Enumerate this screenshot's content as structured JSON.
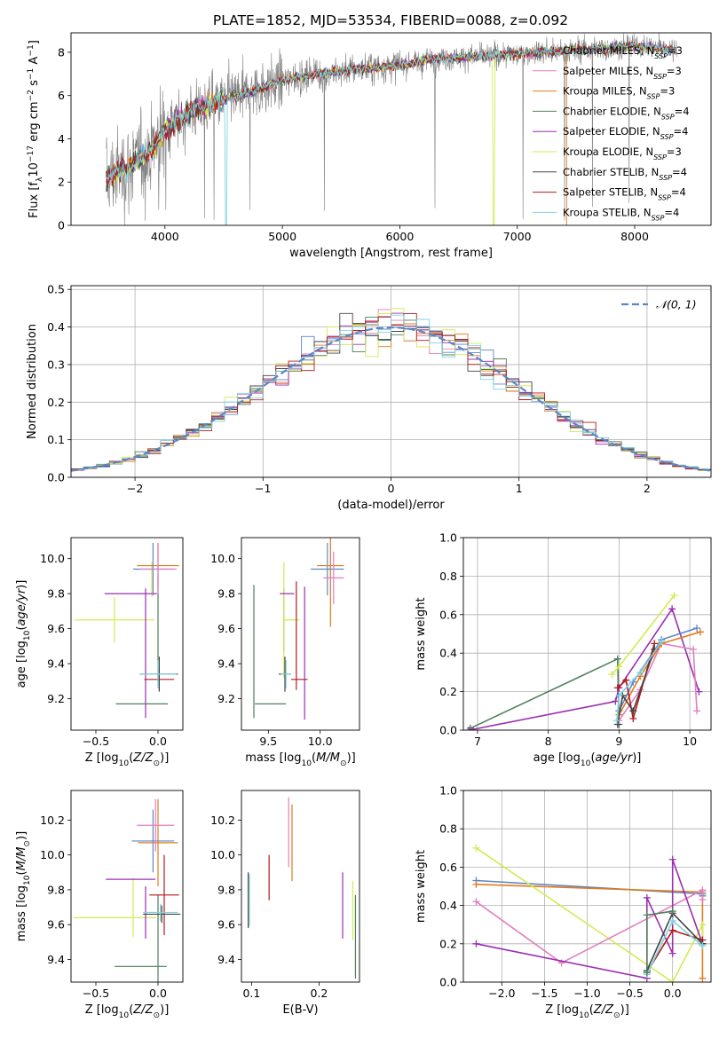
{
  "title": "PLATE=1852, MJD=53534, FIBERID=0088, z=0.092",
  "colors": {
    "chabrier_miles": "#5b87c8",
    "salpeter_miles": "#e37ebf",
    "kroupa_miles": "#e07b1f",
    "chabrier_elodie": "#4f7f5c",
    "salpeter_elodie": "#9a2fb0",
    "kroupa_elodie": "#d4ea52",
    "chabrier_stelib": "#444444",
    "salpeter_stelib": "#b31b1b",
    "kroupa_stelib": "#7fd3de",
    "data_gray": "#7f7f7f",
    "normal_curve": "#5b87c8",
    "grid": "#b0b0b0"
  },
  "chart_data": [
    {
      "id": "spectrum",
      "type": "line",
      "xlabel": "wavelength [Angstrom, rest frame]",
      "ylabel": "Flux [f_λ10^-17 erg cm^-2 s^-1 A^-1]",
      "xlim": [
        3200,
        8650
      ],
      "ylim": [
        0,
        8.9
      ],
      "xticks": [
        4000,
        5000,
        6000,
        7000,
        8000
      ],
      "yticks": [
        0,
        2,
        4,
        6,
        8
      ],
      "grid": false,
      "legend_position": "right",
      "legend": [
        {
          "label": "Chabrier MILES, N_SSP=3",
          "color_key": "chabrier_miles"
        },
        {
          "label": "Salpeter MILES, N_SSP=3",
          "color_key": "salpeter_miles"
        },
        {
          "label": "Kroupa MILES, N_SSP=3",
          "color_key": "kroupa_miles"
        },
        {
          "label": "Chabrier ELODIE, N_SSP=4",
          "color_key": "chabrier_elodie"
        },
        {
          "label": "Salpeter ELODIE, N_SSP=4",
          "color_key": "salpeter_elodie"
        },
        {
          "label": "Kroupa ELODIE, N_SSP=3",
          "color_key": "kroupa_elodie"
        },
        {
          "label": "Chabrier STELIB, N_SSP=4",
          "color_key": "chabrier_stelib"
        },
        {
          "label": "Salpeter STELIB, N_SSP=4",
          "color_key": "salpeter_stelib"
        },
        {
          "label": "Kroupa STELIB, N_SSP=4",
          "color_key": "kroupa_stelib"
        }
      ],
      "continuum": {
        "x": [
          3500,
          3700,
          3900,
          4000,
          4200,
          4500,
          4800,
          5000,
          5300,
          5600,
          6000,
          6300,
          6600,
          6900,
          7200,
          7500,
          7800,
          8000,
          8200,
          8350
        ],
        "y": [
          2.2,
          2.7,
          3.6,
          4.4,
          5.2,
          5.8,
          6.3,
          6.7,
          7.0,
          7.2,
          7.4,
          7.7,
          7.8,
          7.9,
          8.0,
          8.1,
          8.2,
          8.3,
          8.2,
          8.1
        ]
      },
      "model_cutoffs": {
        "kroupa_miles_end": 7420,
        "kroupa_elodie_drop": 6800,
        "kroupa_stelib_drop": 4520
      }
    },
    {
      "id": "residuals",
      "type": "histogram",
      "xlabel": "(data-model)/error",
      "ylabel": "Normed distribution",
      "xlim": [
        -2.5,
        2.5
      ],
      "ylim": [
        0,
        0.51
      ],
      "xticks": [
        -2,
        -1,
        0,
        1,
        2
      ],
      "yticks": [
        0.0,
        0.1,
        0.2,
        0.3,
        0.4,
        0.5
      ],
      "grid": true,
      "legend_position": "top-right",
      "legend": [
        {
          "label": "𝒩(0, 1)",
          "color_key": "normal_curve"
        }
      ],
      "bin_width": 0.1
    },
    {
      "id": "age_vs_Z",
      "type": "errorbar",
      "xlabel": "Z [log10(Z/Z☉)]",
      "ylabel": "age [log10(age/yr)]",
      "xlim": [
        -0.7,
        0.2
      ],
      "ylim": [
        9.02,
        10.12
      ],
      "xticks": [
        -0.5,
        0.0
      ],
      "yticks": [
        9.2,
        9.4,
        9.6,
        9.8,
        10.0
      ],
      "grid": false,
      "points": [
        {
          "model": "kroupa_elodie",
          "x": -0.35,
          "xerr": 0.32,
          "y": 9.65,
          "yerr": 0.13
        },
        {
          "model": "kroupa_elodie",
          "x": -0.05,
          "xerr": 0.0,
          "y": 9.88,
          "yerr": 0.1
        },
        {
          "model": "salpeter_elodie",
          "x": -0.22,
          "xerr": 0.21,
          "y": 9.8,
          "yerr": 0.0
        },
        {
          "model": "salpeter_elodie",
          "x": -0.1,
          "xerr": 0.0,
          "y": 9.46,
          "yerr": 0.37
        },
        {
          "model": "chabrier_elodie",
          "x": -0.13,
          "xerr": 0.21,
          "y": 9.17,
          "yerr": 0.0
        },
        {
          "model": "chabrier_elodie",
          "x": 0.0,
          "xerr": 0.0,
          "y": 9.6,
          "yerr": 0.3
        },
        {
          "model": "kroupa_miles",
          "x": 0.0,
          "xerr": 0.17,
          "y": 9.96,
          "yerr": 0.13
        },
        {
          "model": "chabrier_miles",
          "x": -0.04,
          "xerr": 0.16,
          "y": 9.94,
          "yerr": 0.15
        },
        {
          "model": "salpeter_miles",
          "x": 0.0,
          "xerr": 0.15,
          "y": 9.94,
          "yerr": 0.14
        },
        {
          "model": "salpeter_stelib",
          "x": 0.01,
          "xerr": 0.12,
          "y": 9.31,
          "yerr": 0.06
        },
        {
          "model": "chabrier_stelib",
          "x": 0.01,
          "xerr": 0.15,
          "y": 9.34,
          "yerr": 0.1
        },
        {
          "model": "kroupa_stelib",
          "x": 0.0,
          "xerr": 0.15,
          "y": 9.34,
          "yerr": 0.08
        }
      ]
    },
    {
      "id": "age_vs_mass",
      "type": "errorbar",
      "xlabel": "mass [log10(M/M☉)]",
      "ylabel": "",
      "xlim": [
        9.24,
        10.38
      ],
      "ylim": [
        9.02,
        10.12
      ],
      "xticks": [
        9.5,
        10.0
      ],
      "yticks": [
        9.2,
        9.4,
        9.6,
        9.8,
        10.0
      ],
      "grid": false,
      "points": [
        {
          "model": "chabrier_elodie",
          "x": 9.36,
          "xerr": 0.0,
          "y": 9.47,
          "yerr": 0.38
        },
        {
          "model": "chabrier_elodie",
          "x": 9.52,
          "xerr": 0.15,
          "y": 9.17,
          "yerr": 0.0
        },
        {
          "model": "chabrier_elodie",
          "x": 9.65,
          "xerr": 0.0,
          "y": 9.65,
          "yerr": 0.18
        },
        {
          "model": "kroupa_elodie",
          "x": 9.65,
          "xerr": 0.0,
          "y": 9.65,
          "yerr": 0.33
        },
        {
          "model": "kroupa_elodie",
          "x": 9.72,
          "xerr": 0.08,
          "y": 9.65,
          "yerr": 0.0
        },
        {
          "model": "salpeter_elodie",
          "x": 9.68,
          "xerr": 0.07,
          "y": 9.8,
          "yerr": 0.0
        },
        {
          "model": "salpeter_elodie",
          "x": 9.85,
          "xerr": 0.0,
          "y": 9.46,
          "yerr": 0.38
        },
        {
          "model": "salpeter_stelib",
          "x": 9.8,
          "xerr": 0.08,
          "y": 9.31,
          "yerr": 0.0
        },
        {
          "model": "salpeter_stelib",
          "x": 9.77,
          "xerr": 0.0,
          "y": 9.56,
          "yerr": 0.31
        },
        {
          "model": "chabrier_stelib",
          "x": 9.66,
          "xerr": 0.06,
          "y": 9.34,
          "yerr": 0.1
        },
        {
          "model": "kroupa_stelib",
          "x": 9.67,
          "xerr": 0.05,
          "y": 9.34,
          "yerr": 0.08
        },
        {
          "model": "chabrier_miles",
          "x": 10.07,
          "xerr": 0.16,
          "y": 9.94,
          "yerr": 0.15
        },
        {
          "model": "kroupa_miles",
          "x": 10.1,
          "xerr": 0.13,
          "y": 9.96,
          "yerr": 0.35
        },
        {
          "model": "salpeter_miles",
          "x": 10.13,
          "xerr": 0.1,
          "y": 9.89,
          "yerr": 0.15
        }
      ]
    },
    {
      "id": "weight_vs_age",
      "type": "line",
      "xlabel": "age [log10(age/yr)]",
      "ylabel": "mass weight",
      "xlim": [
        6.8,
        10.3
      ],
      "ylim": [
        0,
        1.0
      ],
      "xticks": [
        7,
        8,
        9,
        10
      ],
      "yticks": [
        0.0,
        0.2,
        0.4,
        0.6,
        0.8,
        1.0
      ],
      "grid": true,
      "series": [
        {
          "model": "chabrier_elodie",
          "x": [
            6.9,
            8.98,
            9.0
          ],
          "y": [
            0.01,
            0.37,
            0.03
          ]
        },
        {
          "model": "kroupa_elodie",
          "x": [
            8.9,
            9.0,
            9.78
          ],
          "y": [
            0.29,
            0.33,
            0.7
          ]
        },
        {
          "model": "salpeter_elodie",
          "x": [
            6.88,
            8.95,
            9.0,
            9.75,
            10.13
          ],
          "y": [
            0.0,
            0.15,
            0.22,
            0.63,
            0.2
          ]
        },
        {
          "model": "salpeter_miles",
          "x": [
            9.0,
            9.3,
            9.6,
            10.05,
            10.1
          ],
          "y": [
            0.05,
            0.21,
            0.45,
            0.42,
            0.1
          ]
        },
        {
          "model": "chabrier_miles",
          "x": [
            9.0,
            9.2,
            9.6,
            10.1
          ],
          "y": [
            0.1,
            0.25,
            0.47,
            0.53
          ]
        },
        {
          "model": "kroupa_miles",
          "x": [
            9.0,
            9.3,
            9.6,
            10.15
          ],
          "y": [
            0.08,
            0.28,
            0.45,
            0.51
          ]
        },
        {
          "model": "salpeter_stelib",
          "x": [
            8.98,
            9.1,
            9.2,
            9.5
          ],
          "y": [
            0.22,
            0.26,
            0.06,
            0.45
          ]
        },
        {
          "model": "chabrier_stelib",
          "x": [
            8.98,
            9.05,
            9.2,
            9.5
          ],
          "y": [
            0.03,
            0.18,
            0.1,
            0.42
          ]
        },
        {
          "model": "kroupa_stelib",
          "x": [
            8.97,
            9.0,
            9.3,
            9.6
          ],
          "y": [
            0.05,
            0.18,
            0.3,
            0.46
          ]
        }
      ]
    },
    {
      "id": "mass_vs_Z",
      "type": "errorbar",
      "xlabel": "Z [log10(Z/Z☉)]",
      "ylabel": "mass [log10(M/M☉)]",
      "xlim": [
        -0.7,
        0.2
      ],
      "ylim": [
        9.27,
        10.37
      ],
      "xticks": [
        -0.5,
        0.0
      ],
      "yticks": [
        9.4,
        9.6,
        9.8,
        10.0,
        10.2
      ],
      "grid": false,
      "points": [
        {
          "model": "kroupa_elodie",
          "x": -0.35,
          "xerr": 0.33,
          "y": 9.64,
          "yerr": 0.0
        },
        {
          "model": "kroupa_elodie",
          "x": -0.2,
          "xerr": 0.0,
          "y": 9.7,
          "yerr": 0.17
        },
        {
          "model": "salpeter_elodie",
          "x": -0.22,
          "xerr": 0.2,
          "y": 9.86,
          "yerr": 0.0
        },
        {
          "model": "salpeter_elodie",
          "x": -0.1,
          "xerr": 0.0,
          "y": 9.67,
          "yerr": 0.15
        },
        {
          "model": "chabrier_elodie",
          "x": -0.14,
          "xerr": 0.21,
          "y": 9.36,
          "yerr": 0.0
        },
        {
          "model": "chabrier_elodie",
          "x": 0.0,
          "xerr": 0.0,
          "y": 9.52,
          "yerr": 0.25
        },
        {
          "model": "chabrier_miles",
          "x": -0.04,
          "xerr": 0.17,
          "y": 10.08,
          "yerr": 0.18
        },
        {
          "model": "kroupa_miles",
          "x": 0.0,
          "xerr": 0.16,
          "y": 10.07,
          "yerr": 0.25
        },
        {
          "model": "salpeter_miles",
          "x": -0.02,
          "xerr": 0.15,
          "y": 10.17,
          "yerr": 0.15
        },
        {
          "model": "salpeter_stelib",
          "x": 0.05,
          "xerr": 0.12,
          "y": 9.77,
          "yerr": 0.23
        },
        {
          "model": "chabrier_stelib",
          "x": 0.03,
          "xerr": 0.15,
          "y": 9.66,
          "yerr": 0.05
        },
        {
          "model": "kroupa_stelib",
          "x": 0.02,
          "xerr": 0.14,
          "y": 9.67,
          "yerr": 0.05
        }
      ]
    },
    {
      "id": "mass_vs_ebv",
      "type": "errorbar",
      "xlabel": "E(B-V)",
      "ylabel": "",
      "xlim": [
        0.085,
        0.26
      ],
      "ylim": [
        9.27,
        10.37
      ],
      "xticks": [
        0.1,
        0.2
      ],
      "yticks": [
        9.4,
        9.6,
        9.8,
        10.0,
        10.2
      ],
      "grid": false,
      "points": [
        {
          "model": "chabrier_stelib",
          "x": 0.095,
          "xerr": 0.0,
          "y": 9.74,
          "yerr": 0.16
        },
        {
          "model": "kroupa_stelib",
          "x": 0.097,
          "xerr": 0.0,
          "y": 9.74,
          "yerr": 0.15
        },
        {
          "model": "salpeter_stelib",
          "x": 0.126,
          "xerr": 0.0,
          "y": 9.87,
          "yerr": 0.13
        },
        {
          "model": "salpeter_miles",
          "x": 0.155,
          "xerr": 0.0,
          "y": 10.13,
          "yerr": 0.2
        },
        {
          "model": "kroupa_miles",
          "x": 0.16,
          "xerr": 0.0,
          "y": 10.07,
          "yerr": 0.22
        },
        {
          "model": "salpeter_elodie",
          "x": 0.235,
          "xerr": 0.0,
          "y": 9.71,
          "yerr": 0.19
        },
        {
          "model": "kroupa_elodie",
          "x": 0.25,
          "xerr": 0.0,
          "y": 9.68,
          "yerr": 0.17
        },
        {
          "model": "chabrier_elodie",
          "x": 0.254,
          "xerr": 0.0,
          "y": 9.53,
          "yerr": 0.24
        }
      ]
    },
    {
      "id": "weight_vs_Z",
      "type": "line",
      "xlabel": "Z [log10(Z/Z☉)]",
      "ylabel": "mass weight",
      "xlim": [
        -2.45,
        0.45
      ],
      "ylim": [
        0,
        1.0
      ],
      "xticks": [
        -2.0,
        -1.5,
        -1.0,
        -0.5,
        0.0
      ],
      "yticks": [
        0.0,
        0.2,
        0.4,
        0.6,
        0.8,
        1.0
      ],
      "grid": true,
      "series": [
        {
          "model": "chabrier_miles",
          "x": [
            -2.3,
            0.35,
            0.35
          ],
          "y": [
            0.53,
            0.46,
            0.45
          ]
        },
        {
          "model": "kroupa_miles",
          "x": [
            -2.3,
            0.35,
            0.35
          ],
          "y": [
            0.51,
            0.47,
            0.02
          ]
        },
        {
          "model": "kroupa_elodie",
          "x": [
            -2.3,
            0.0,
            0.35,
            0.35
          ],
          "y": [
            0.7,
            0.0,
            0.3,
            0.2
          ]
        },
        {
          "model": "salpeter_miles",
          "x": [
            -2.3,
            -1.3,
            0.35,
            0.35
          ],
          "y": [
            0.42,
            0.1,
            0.48,
            0.43
          ]
        },
        {
          "model": "salpeter_elodie",
          "x": [
            -2.3,
            -0.3,
            -0.3,
            0.0,
            0.0,
            0.35
          ],
          "y": [
            0.2,
            0.02,
            0.44,
            0.15,
            0.64,
            0.2
          ]
        },
        {
          "model": "salpeter_stelib",
          "x": [
            -0.3,
            0.0,
            0.35,
            0.35
          ],
          "y": [
            0.05,
            0.27,
            0.22,
            0.2
          ]
        },
        {
          "model": "chabrier_stelib",
          "x": [
            -0.3,
            0.0,
            0.35
          ],
          "y": [
            0.06,
            0.36,
            0.2
          ]
        },
        {
          "model": "kroupa_stelib",
          "x": [
            -0.3,
            0.0,
            0.35
          ],
          "y": [
            0.04,
            0.32,
            0.19
          ]
        },
        {
          "model": "chabrier_elodie",
          "x": [
            -0.3,
            -0.3,
            0.0
          ],
          "y": [
            0.05,
            0.35,
            0.37
          ]
        }
      ]
    }
  ]
}
